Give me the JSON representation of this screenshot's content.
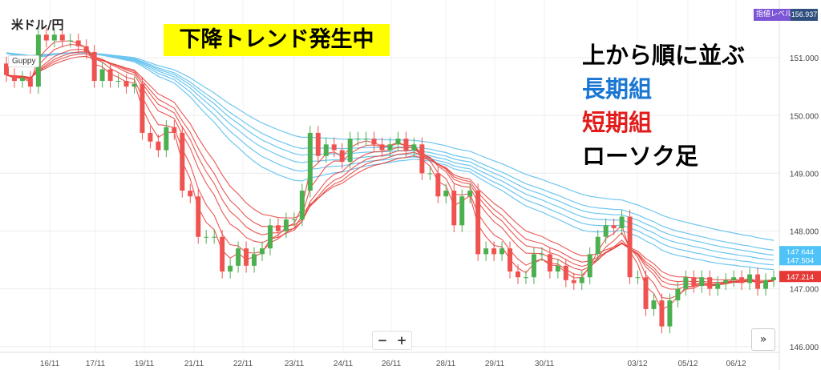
{
  "symbol": "米ドル/円",
  "indicator": "Guppy",
  "trend_label": "下降トレンド発生中",
  "legend": {
    "heading": "上から順に並ぶ",
    "long": "長期組",
    "short": "短期組",
    "candle": "ローソク足"
  },
  "colors": {
    "up": "#4caf50",
    "down": "#ef5350",
    "long": "#6ec6ef",
    "short": "#e53935",
    "banner": "#ffff00",
    "long_text": "#1976d2",
    "short_text": "#e21b1b"
  },
  "zoom": {
    "minus": "−",
    "plus": "+"
  },
  "scroll_label": "»",
  "price_level": {
    "label": "指値レベル",
    "value": "156.937"
  },
  "chart_data": {
    "type": "candlestick",
    "x_labels": [
      "16/11",
      "17/11",
      "19/11",
      "21/11",
      "22/11",
      "23/11",
      "24/11",
      "26/11",
      "28/11",
      "29/11",
      "30/11",
      "03/12",
      "05/12",
      "06/12"
    ],
    "y_ticks": [
      146.0,
      147.0,
      148.0,
      149.0,
      150.0,
      151.0
    ],
    "y_range": [
      145.9,
      152.0
    ],
    "grid": true,
    "price_tags": [
      {
        "value": 147.644,
        "label": "147.644",
        "color": "#4fc3f7"
      },
      {
        "value": 147.504,
        "label": "147.504",
        "color": "#4fc3f7"
      },
      {
        "value": 147.214,
        "label": "147.214",
        "color": "#e53935"
      }
    ],
    "series_count": {
      "long": 6,
      "short": 6
    },
    "close": [
      150.7,
      150.6,
      150.65,
      150.5,
      151.4,
      151.3,
      151.4,
      151.3,
      151.3,
      151.2,
      151.1,
      150.6,
      150.8,
      150.6,
      150.6,
      150.5,
      150.55,
      149.7,
      149.55,
      149.4,
      149.8,
      149.7,
      148.7,
      148.6,
      147.9,
      147.9,
      147.9,
      147.3,
      147.4,
      147.7,
      147.4,
      147.6,
      147.7,
      148.1,
      148.0,
      148.2,
      148.2,
      148.7,
      149.7,
      149.3,
      149.5,
      149.4,
      149.2,
      149.6,
      149.6,
      149.6,
      149.5,
      149.4,
      149.5,
      149.6,
      149.4,
      149.5,
      149.0,
      149.0,
      148.6,
      148.7,
      148.1,
      148.6,
      148.7,
      147.6,
      147.7,
      147.6,
      147.7,
      147.3,
      147.2,
      147.2,
      147.6,
      147.6,
      147.3,
      147.4,
      147.15,
      147.1,
      147.2,
      147.6,
      147.9,
      148.1,
      148.05,
      148.25,
      147.2,
      147.2,
      146.65,
      146.8,
      146.35,
      146.8,
      147.0,
      147.2,
      147.05,
      147.2,
      147.0,
      147.1,
      147.15,
      147.2,
      147.1,
      147.25,
      147.0,
      147.15,
      147.2
    ],
    "open": [
      150.9,
      150.7,
      150.6,
      150.65,
      150.5,
      151.4,
      151.3,
      151.4,
      151.3,
      151.3,
      151.2,
      151.1,
      150.6,
      150.8,
      150.6,
      150.6,
      150.5,
      150.55,
      149.7,
      149.55,
      149.4,
      149.8,
      149.7,
      148.7,
      148.6,
      147.9,
      147.9,
      147.9,
      147.3,
      147.4,
      147.7,
      147.4,
      147.6,
      147.7,
      148.1,
      148.0,
      148.2,
      148.2,
      148.7,
      149.7,
      149.3,
      149.5,
      149.4,
      149.2,
      149.6,
      149.6,
      149.6,
      149.5,
      149.4,
      149.5,
      149.6,
      149.4,
      149.5,
      149.0,
      149.0,
      148.6,
      148.7,
      148.1,
      148.6,
      148.7,
      147.6,
      147.7,
      147.6,
      147.7,
      147.3,
      147.2,
      147.2,
      147.6,
      147.6,
      147.3,
      147.4,
      147.15,
      147.1,
      147.2,
      147.6,
      147.9,
      148.1,
      148.05,
      148.25,
      147.2,
      147.2,
      146.65,
      146.8,
      146.35,
      146.8,
      147.0,
      147.2,
      147.05,
      147.2,
      147.0,
      147.1,
      147.15,
      147.2,
      147.1,
      147.25,
      147.0,
      147.15
    ]
  }
}
